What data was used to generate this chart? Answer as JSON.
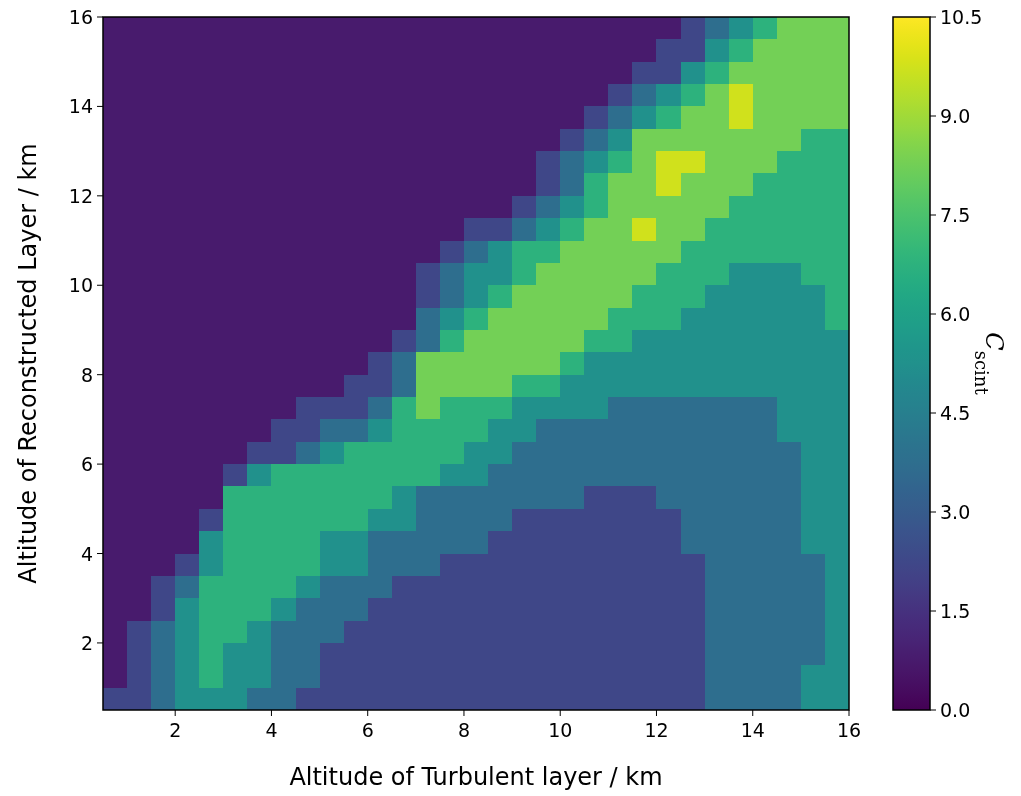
{
  "chart_data": {
    "type": "heatmap",
    "xlabel": "Altitude of Turbulent layer / km",
    "ylabel": "Altitude of Reconstructed Layer / km",
    "clabel": "C$_{scint}$",
    "x": [
      0.75,
      1.25,
      1.75,
      2.25,
      2.75,
      3.25,
      3.75,
      4.25,
      4.75,
      5.25,
      5.75,
      6.25,
      6.75,
      7.25,
      7.75,
      8.25,
      8.75,
      9.25,
      9.75,
      10.25,
      10.75,
      11.25,
      11.75,
      12.25,
      12.75,
      13.25,
      13.75,
      14.25,
      14.75,
      15.25,
      15.75
    ],
    "y": [
      15.75,
      15.25,
      14.75,
      14.25,
      13.75,
      13.25,
      12.75,
      12.25,
      11.75,
      11.25,
      10.75,
      10.25,
      9.75,
      9.25,
      8.75,
      8.25,
      7.75,
      7.25,
      6.75,
      6.25,
      5.75,
      5.25,
      4.75,
      4.25,
      3.75,
      3.25,
      2.75,
      2.25,
      1.75,
      1.25,
      0.75
    ],
    "xlim": [
      0.5,
      16
    ],
    "ylim": [
      0.5,
      16
    ],
    "xticks": [
      2,
      4,
      6,
      8,
      10,
      12,
      14,
      16
    ],
    "yticks": [
      2,
      4,
      6,
      8,
      10,
      12,
      14,
      16
    ],
    "clim": [
      0,
      10.5
    ],
    "cticks": [
      {
        "value": 0,
        "label": "0.0"
      },
      1.5,
      {
        "value": 3,
        "label": "3.0"
      },
      4.5,
      {
        "value": 6,
        "label": "6.0"
      },
      7.5,
      {
        "value": 9,
        "label": "9.0"
      },
      10.5
    ],
    "cells": [
      [
        0.75,
        0.75,
        0.75,
        0.75,
        0.75,
        0.75,
        0.75,
        0.75,
        0.75,
        0.75,
        0.75,
        0.75,
        0.75,
        0.75,
        0.75,
        0.75,
        0.75,
        0.75,
        0.75,
        0.75,
        0.75,
        0.75,
        0.75,
        0.75,
        2.25,
        3.75,
        5.25,
        6.75,
        8.25,
        8.25,
        8.25
      ],
      [
        0.75,
        0.75,
        0.75,
        0.75,
        0.75,
        0.75,
        0.75,
        0.75,
        0.75,
        0.75,
        0.75,
        0.75,
        0.75,
        0.75,
        0.75,
        0.75,
        0.75,
        0.75,
        0.75,
        0.75,
        0.75,
        0.75,
        0.75,
        2.25,
        2.25,
        5.25,
        6.75,
        8.25,
        8.25,
        8.25,
        8.25
      ],
      [
        0.75,
        0.75,
        0.75,
        0.75,
        0.75,
        0.75,
        0.75,
        0.75,
        0.75,
        0.75,
        0.75,
        0.75,
        0.75,
        0.75,
        0.75,
        0.75,
        0.75,
        0.75,
        0.75,
        0.75,
        0.75,
        0.75,
        2.25,
        2.25,
        5.25,
        6.75,
        8.25,
        8.25,
        8.25,
        8.25,
        8.25
      ],
      [
        0.75,
        0.75,
        0.75,
        0.75,
        0.75,
        0.75,
        0.75,
        0.75,
        0.75,
        0.75,
        0.75,
        0.75,
        0.75,
        0.75,
        0.75,
        0.75,
        0.75,
        0.75,
        0.75,
        0.75,
        0.75,
        2.25,
        3.75,
        5.25,
        6.75,
        8.25,
        9.75,
        8.25,
        8.25,
        8.25,
        8.25
      ],
      [
        0.75,
        0.75,
        0.75,
        0.75,
        0.75,
        0.75,
        0.75,
        0.75,
        0.75,
        0.75,
        0.75,
        0.75,
        0.75,
        0.75,
        0.75,
        0.75,
        0.75,
        0.75,
        0.75,
        0.75,
        2.25,
        3.75,
        5.25,
        6.75,
        8.25,
        8.25,
        9.75,
        8.25,
        8.25,
        8.25,
        8.25
      ],
      [
        0.75,
        0.75,
        0.75,
        0.75,
        0.75,
        0.75,
        0.75,
        0.75,
        0.75,
        0.75,
        0.75,
        0.75,
        0.75,
        0.75,
        0.75,
        0.75,
        0.75,
        0.75,
        0.75,
        2.25,
        3.75,
        5.25,
        8.25,
        8.25,
        8.25,
        8.25,
        8.25,
        8.25,
        8.25,
        6.75,
        6.75
      ],
      [
        0.75,
        0.75,
        0.75,
        0.75,
        0.75,
        0.75,
        0.75,
        0.75,
        0.75,
        0.75,
        0.75,
        0.75,
        0.75,
        0.75,
        0.75,
        0.75,
        0.75,
        0.75,
        2.25,
        3.75,
        5.25,
        6.75,
        8.25,
        9.75,
        9.75,
        8.25,
        8.25,
        8.25,
        6.75,
        6.75,
        6.75
      ],
      [
        0.75,
        0.75,
        0.75,
        0.75,
        0.75,
        0.75,
        0.75,
        0.75,
        0.75,
        0.75,
        0.75,
        0.75,
        0.75,
        0.75,
        0.75,
        0.75,
        0.75,
        0.75,
        2.25,
        3.75,
        6.75,
        8.25,
        8.25,
        9.75,
        8.25,
        8.25,
        8.25,
        6.75,
        6.75,
        6.75,
        6.75
      ],
      [
        0.75,
        0.75,
        0.75,
        0.75,
        0.75,
        0.75,
        0.75,
        0.75,
        0.75,
        0.75,
        0.75,
        0.75,
        0.75,
        0.75,
        0.75,
        0.75,
        0.75,
        2.25,
        3.75,
        5.25,
        6.75,
        8.25,
        8.25,
        8.25,
        8.25,
        8.25,
        6.75,
        6.75,
        6.75,
        6.75,
        6.75
      ],
      [
        0.75,
        0.75,
        0.75,
        0.75,
        0.75,
        0.75,
        0.75,
        0.75,
        0.75,
        0.75,
        0.75,
        0.75,
        0.75,
        0.75,
        0.75,
        2.25,
        2.25,
        3.75,
        5.25,
        6.75,
        8.25,
        8.25,
        9.75,
        8.25,
        8.25,
        6.75,
        6.75,
        6.75,
        6.75,
        6.75,
        6.75
      ],
      [
        0.75,
        0.75,
        0.75,
        0.75,
        0.75,
        0.75,
        0.75,
        0.75,
        0.75,
        0.75,
        0.75,
        0.75,
        0.75,
        0.75,
        2.25,
        3.75,
        5.25,
        6.75,
        6.75,
        8.25,
        8.25,
        8.25,
        8.25,
        8.25,
        6.75,
        6.75,
        6.75,
        6.75,
        6.75,
        6.75,
        6.75
      ],
      [
        0.75,
        0.75,
        0.75,
        0.75,
        0.75,
        0.75,
        0.75,
        0.75,
        0.75,
        0.75,
        0.75,
        0.75,
        0.75,
        2.25,
        3.75,
        5.25,
        5.25,
        6.75,
        8.25,
        8.25,
        8.25,
        8.25,
        8.25,
        6.75,
        6.75,
        6.75,
        5.25,
        5.25,
        5.25,
        6.75,
        6.75
      ],
      [
        0.75,
        0.75,
        0.75,
        0.75,
        0.75,
        0.75,
        0.75,
        0.75,
        0.75,
        0.75,
        0.75,
        0.75,
        0.75,
        2.25,
        3.75,
        5.25,
        6.75,
        8.25,
        8.25,
        8.25,
        8.25,
        8.25,
        6.75,
        6.75,
        6.75,
        5.25,
        5.25,
        5.25,
        5.25,
        5.25,
        6.75
      ],
      [
        0.75,
        0.75,
        0.75,
        0.75,
        0.75,
        0.75,
        0.75,
        0.75,
        0.75,
        0.75,
        0.75,
        0.75,
        0.75,
        3.75,
        5.25,
        6.75,
        8.25,
        8.25,
        8.25,
        8.25,
        8.25,
        6.75,
        6.75,
        6.75,
        5.25,
        5.25,
        5.25,
        5.25,
        5.25,
        5.25,
        6.75
      ],
      [
        0.75,
        0.75,
        0.75,
        0.75,
        0.75,
        0.75,
        0.75,
        0.75,
        0.75,
        0.75,
        0.75,
        0.75,
        2.25,
        3.75,
        6.75,
        8.25,
        8.25,
        8.25,
        8.25,
        8.25,
        6.75,
        6.75,
        5.25,
        5.25,
        5.25,
        5.25,
        5.25,
        5.25,
        5.25,
        5.25,
        5.25
      ],
      [
        0.75,
        0.75,
        0.75,
        0.75,
        0.75,
        0.75,
        0.75,
        0.75,
        0.75,
        0.75,
        0.75,
        2.25,
        3.75,
        8.25,
        8.25,
        8.25,
        8.25,
        8.25,
        8.25,
        6.75,
        5.25,
        5.25,
        5.25,
        5.25,
        5.25,
        5.25,
        5.25,
        5.25,
        5.25,
        5.25,
        5.25
      ],
      [
        0.75,
        0.75,
        0.75,
        0.75,
        0.75,
        0.75,
        0.75,
        0.75,
        0.75,
        0.75,
        2.25,
        2.25,
        3.75,
        8.25,
        8.25,
        8.25,
        8.25,
        6.75,
        6.75,
        5.25,
        5.25,
        5.25,
        5.25,
        5.25,
        5.25,
        5.25,
        5.25,
        5.25,
        5.25,
        5.25,
        5.25
      ],
      [
        0.75,
        0.75,
        0.75,
        0.75,
        0.75,
        0.75,
        0.75,
        0.75,
        2.25,
        2.25,
        2.25,
        3.75,
        6.75,
        8.25,
        6.75,
        6.75,
        6.75,
        5.25,
        5.25,
        5.25,
        5.25,
        3.75,
        3.75,
        3.75,
        3.75,
        3.75,
        3.75,
        3.75,
        5.25,
        5.25,
        5.25
      ],
      [
        0.75,
        0.75,
        0.75,
        0.75,
        0.75,
        0.75,
        0.75,
        2.25,
        2.25,
        3.75,
        3.75,
        5.25,
        6.75,
        6.75,
        6.75,
        6.75,
        5.25,
        5.25,
        3.75,
        3.75,
        3.75,
        3.75,
        3.75,
        3.75,
        3.75,
        3.75,
        3.75,
        3.75,
        5.25,
        5.25,
        5.25
      ],
      [
        0.75,
        0.75,
        0.75,
        0.75,
        0.75,
        0.75,
        2.25,
        2.25,
        3.75,
        5.25,
        6.75,
        6.75,
        6.75,
        6.75,
        6.75,
        5.25,
        5.25,
        3.75,
        3.75,
        3.75,
        3.75,
        3.75,
        3.75,
        3.75,
        3.75,
        3.75,
        3.75,
        3.75,
        3.75,
        5.25,
        5.25
      ],
      [
        0.75,
        0.75,
        0.75,
        0.75,
        0.75,
        2.25,
        5.25,
        6.75,
        6.75,
        6.75,
        6.75,
        6.75,
        6.75,
        6.75,
        5.25,
        5.25,
        3.75,
        3.75,
        3.75,
        3.75,
        3.75,
        3.75,
        3.75,
        3.75,
        3.75,
        3.75,
        3.75,
        3.75,
        3.75,
        5.25,
        5.25
      ],
      [
        0.75,
        0.75,
        0.75,
        0.75,
        0.75,
        6.75,
        6.75,
        6.75,
        6.75,
        6.75,
        6.75,
        6.75,
        5.25,
        3.75,
        3.75,
        3.75,
        3.75,
        3.75,
        3.75,
        3.75,
        2.25,
        2.25,
        2.25,
        3.75,
        3.75,
        3.75,
        3.75,
        3.75,
        3.75,
        5.25,
        5.25
      ],
      [
        0.75,
        0.75,
        0.75,
        0.75,
        2.25,
        6.75,
        6.75,
        6.75,
        6.75,
        6.75,
        6.75,
        5.25,
        5.25,
        3.75,
        3.75,
        3.75,
        3.75,
        2.25,
        2.25,
        2.25,
        2.25,
        2.25,
        2.25,
        2.25,
        3.75,
        3.75,
        3.75,
        3.75,
        3.75,
        5.25,
        5.25
      ],
      [
        0.75,
        0.75,
        0.75,
        0.75,
        5.25,
        6.75,
        6.75,
        6.75,
        6.75,
        5.25,
        5.25,
        3.75,
        3.75,
        3.75,
        3.75,
        3.75,
        2.25,
        2.25,
        2.25,
        2.25,
        2.25,
        2.25,
        2.25,
        2.25,
        3.75,
        3.75,
        3.75,
        3.75,
        3.75,
        5.25,
        5.25
      ],
      [
        0.75,
        0.75,
        0.75,
        2.25,
        5.25,
        6.75,
        6.75,
        6.75,
        6.75,
        5.25,
        5.25,
        3.75,
        3.75,
        3.75,
        2.25,
        2.25,
        2.25,
        2.25,
        2.25,
        2.25,
        2.25,
        2.25,
        2.25,
        2.25,
        2.25,
        3.75,
        3.75,
        3.75,
        3.75,
        3.75,
        5.25
      ],
      [
        0.75,
        0.75,
        2.25,
        3.75,
        6.75,
        6.75,
        6.75,
        6.75,
        5.25,
        3.75,
        3.75,
        3.75,
        2.25,
        2.25,
        2.25,
        2.25,
        2.25,
        2.25,
        2.25,
        2.25,
        2.25,
        2.25,
        2.25,
        2.25,
        2.25,
        3.75,
        3.75,
        3.75,
        3.75,
        3.75,
        5.25
      ],
      [
        0.75,
        0.75,
        2.25,
        5.25,
        6.75,
        6.75,
        6.75,
        5.25,
        3.75,
        3.75,
        3.75,
        2.25,
        2.25,
        2.25,
        2.25,
        2.25,
        2.25,
        2.25,
        2.25,
        2.25,
        2.25,
        2.25,
        2.25,
        2.25,
        2.25,
        3.75,
        3.75,
        3.75,
        3.75,
        3.75,
        5.25
      ],
      [
        0.75,
        2.25,
        3.75,
        5.25,
        6.75,
        6.75,
        5.25,
        3.75,
        3.75,
        3.75,
        2.25,
        2.25,
        2.25,
        2.25,
        2.25,
        2.25,
        2.25,
        2.25,
        2.25,
        2.25,
        2.25,
        2.25,
        2.25,
        2.25,
        2.25,
        3.75,
        3.75,
        3.75,
        3.75,
        3.75,
        5.25
      ],
      [
        0.75,
        2.25,
        3.75,
        5.25,
        6.75,
        5.25,
        5.25,
        3.75,
        3.75,
        2.25,
        2.25,
        2.25,
        2.25,
        2.25,
        2.25,
        2.25,
        2.25,
        2.25,
        2.25,
        2.25,
        2.25,
        2.25,
        2.25,
        2.25,
        2.25,
        3.75,
        3.75,
        3.75,
        3.75,
        3.75,
        5.25
      ],
      [
        0.75,
        2.25,
        3.75,
        5.25,
        6.75,
        5.25,
        5.25,
        3.75,
        3.75,
        2.25,
        2.25,
        2.25,
        2.25,
        2.25,
        2.25,
        2.25,
        2.25,
        2.25,
        2.25,
        2.25,
        2.25,
        2.25,
        2.25,
        2.25,
        2.25,
        3.75,
        3.75,
        3.75,
        3.75,
        5.25,
        5.25
      ],
      [
        2.25,
        2.25,
        3.75,
        5.25,
        5.25,
        5.25,
        3.75,
        3.75,
        2.25,
        2.25,
        2.25,
        2.25,
        2.25,
        2.25,
        2.25,
        2.25,
        2.25,
        2.25,
        2.25,
        2.25,
        2.25,
        2.25,
        2.25,
        2.25,
        2.25,
        3.75,
        3.75,
        3.75,
        3.75,
        5.25,
        5.25
      ]
    ]
  }
}
